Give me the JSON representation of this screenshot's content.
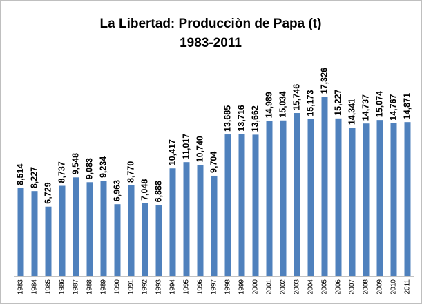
{
  "chart_data": {
    "type": "bar",
    "title": "La Libertad: Producciòn de Papa (t)",
    "subtitle": "1983-2011",
    "categories": [
      "1983",
      "1984",
      "1985",
      "1986",
      "1987",
      "1988",
      "1989",
      "1990",
      "1991",
      "1992",
      "1993",
      "1994",
      "1995",
      "1996",
      "1997",
      "1998",
      "1999",
      "2000",
      "2001",
      "2002",
      "2003",
      "2004",
      "2005",
      "2006",
      "2007",
      "2008",
      "2009",
      "2010",
      "2011"
    ],
    "values": [
      8514,
      8227,
      6729,
      8737,
      9548,
      9083,
      9234,
      6963,
      8770,
      7048,
      6888,
      10417,
      11017,
      10740,
      9704,
      13685,
      13716,
      13662,
      14989,
      15034,
      15746,
      15173,
      17326,
      15227,
      14341,
      14737,
      15074,
      14767,
      14871
    ],
    "value_labels": [
      "8,514",
      "8,227",
      "6,729",
      "8,737",
      "9,548",
      "9,083",
      "9,234",
      "6,963",
      "8,770",
      "7,048",
      "6,888",
      "10,417",
      "11,017",
      "10,740",
      "9,704",
      "13,685",
      "13,716",
      "13,662",
      "14,989",
      "15,034",
      "15,746",
      "15,173",
      "17,326",
      "15,227",
      "14,341",
      "14,737",
      "15,074",
      "14,767",
      "14,871"
    ],
    "color": "#4f81bd",
    "ylim": [
      0,
      20000
    ]
  }
}
